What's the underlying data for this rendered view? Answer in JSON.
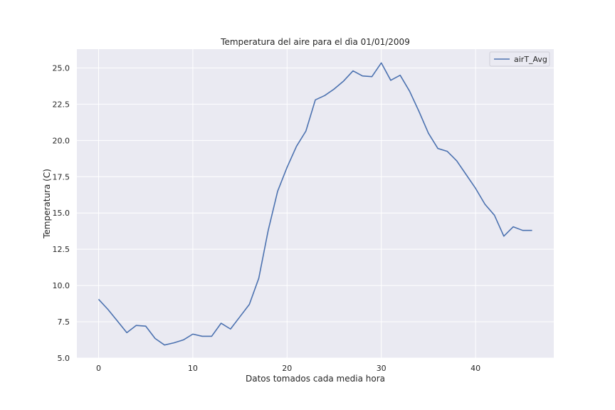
{
  "chart_data": {
    "type": "line",
    "title": "Temperatura del aire para el dìa 01/01/2009",
    "xlabel": "Datos tomados cada media hora",
    "ylabel": "Temperatura (C)",
    "xlim": [
      -2.3,
      48.3
    ],
    "ylim": [
      5.0,
      26.3
    ],
    "x_ticks": [
      0,
      10,
      20,
      30,
      40
    ],
    "x_tick_labels": [
      "0",
      "10",
      "20",
      "30",
      "40"
    ],
    "y_ticks": [
      5.0,
      7.5,
      10.0,
      12.5,
      15.0,
      17.5,
      20.0,
      22.5,
      25.0
    ],
    "y_tick_labels": [
      "5.0",
      "7.5",
      "10.0",
      "12.5",
      "15.0",
      "17.5",
      "20.0",
      "22.5",
      "25.0"
    ],
    "grid": true,
    "legend_position": "upper right",
    "x": [
      0,
      1,
      2,
      3,
      4,
      5,
      6,
      7,
      8,
      9,
      10,
      11,
      12,
      13,
      14,
      15,
      16,
      17,
      18,
      19,
      20,
      21,
      22,
      23,
      24,
      25,
      26,
      27,
      28,
      29,
      30,
      31,
      32,
      33,
      34,
      35,
      36,
      37,
      38,
      39,
      40,
      41,
      42,
      43,
      44,
      45,
      46
    ],
    "series": [
      {
        "name": "airT_Avg",
        "color": "#4c72b0",
        "values": [
          9.05,
          8.35,
          7.55,
          6.75,
          7.25,
          7.2,
          6.35,
          5.9,
          6.05,
          6.25,
          6.65,
          6.5,
          6.5,
          7.4,
          7.0,
          7.85,
          8.7,
          10.5,
          13.8,
          16.5,
          18.15,
          19.6,
          20.65,
          22.8,
          23.1,
          23.55,
          24.1,
          24.8,
          24.45,
          24.4,
          25.35,
          24.15,
          24.5,
          23.4,
          22.0,
          20.5,
          19.45,
          19.25,
          18.6,
          17.65,
          16.7,
          15.6,
          14.85,
          13.4,
          14.05,
          13.8,
          13.8
        ]
      }
    ]
  }
}
